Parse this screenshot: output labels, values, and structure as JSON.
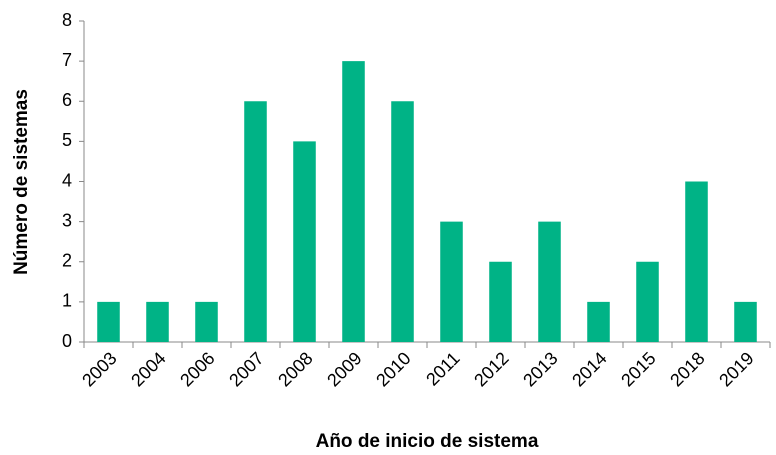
{
  "chart_data": {
    "type": "bar",
    "x_label": "Año de inicio de sistema",
    "y_label": "Número de sistemas",
    "categories": [
      "2003",
      "2004",
      "2006",
      "2007",
      "2008",
      "2009",
      "2010",
      "2011",
      "2012",
      "2013",
      "2014",
      "2015",
      "2018",
      "2019"
    ],
    "values": [
      1,
      1,
      1,
      6,
      5,
      7,
      6,
      3,
      2,
      3,
      1,
      2,
      4,
      1
    ],
    "color": "#00b386",
    "ylim": [
      0,
      8
    ],
    "yticks": [
      0,
      1,
      2,
      3,
      4,
      5,
      6,
      7,
      8
    ],
    "grid": false
  }
}
